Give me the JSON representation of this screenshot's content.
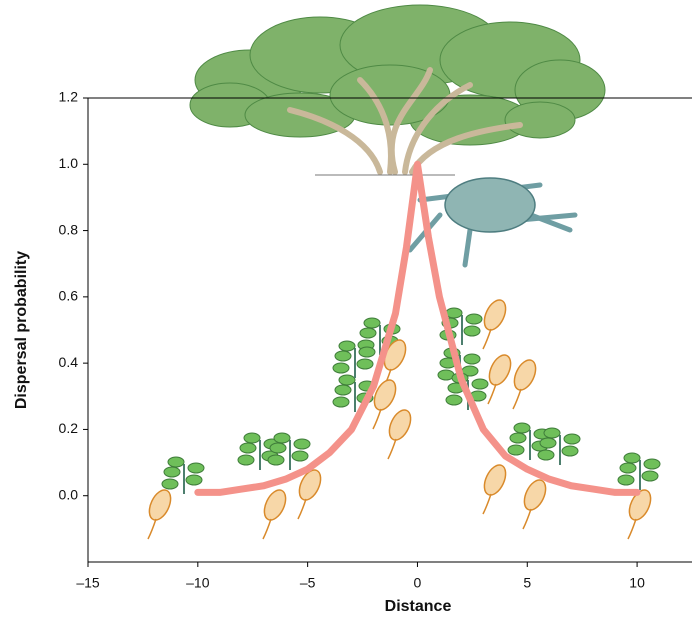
{
  "chart_data": {
    "type": "line",
    "x": [
      -10,
      -9,
      -8,
      -7,
      -6,
      -5,
      -4,
      -3,
      -2,
      -1,
      -0.5,
      0,
      0.5,
      1,
      2,
      3,
      4,
      5,
      6,
      7,
      8,
      9,
      10
    ],
    "values": [
      0.01,
      0.01,
      0.02,
      0.03,
      0.05,
      0.08,
      0.13,
      0.2,
      0.33,
      0.55,
      0.75,
      1.0,
      0.78,
      0.6,
      0.35,
      0.2,
      0.12,
      0.08,
      0.05,
      0.03,
      0.02,
      0.01,
      0.01
    ],
    "color": "#f4928a",
    "x_label": "Distance",
    "y_label": "Dispersal probability",
    "xlim": [
      -15,
      12.5
    ],
    "ylim": [
      -0.2,
      1.2
    ],
    "xticks": [
      {
        "value": -15,
        "label": "–15"
      },
      {
        "value": -10,
        "label": "–10"
      },
      {
        "value": -5,
        "label": "–5"
      },
      0,
      5,
      10
    ],
    "yticks": [
      {
        "value": 0,
        "label": "0.0"
      },
      0.2,
      0.4,
      0.6,
      0.8,
      {
        "value": 1,
        "label": "1.0"
      },
      1.2
    ]
  }
}
